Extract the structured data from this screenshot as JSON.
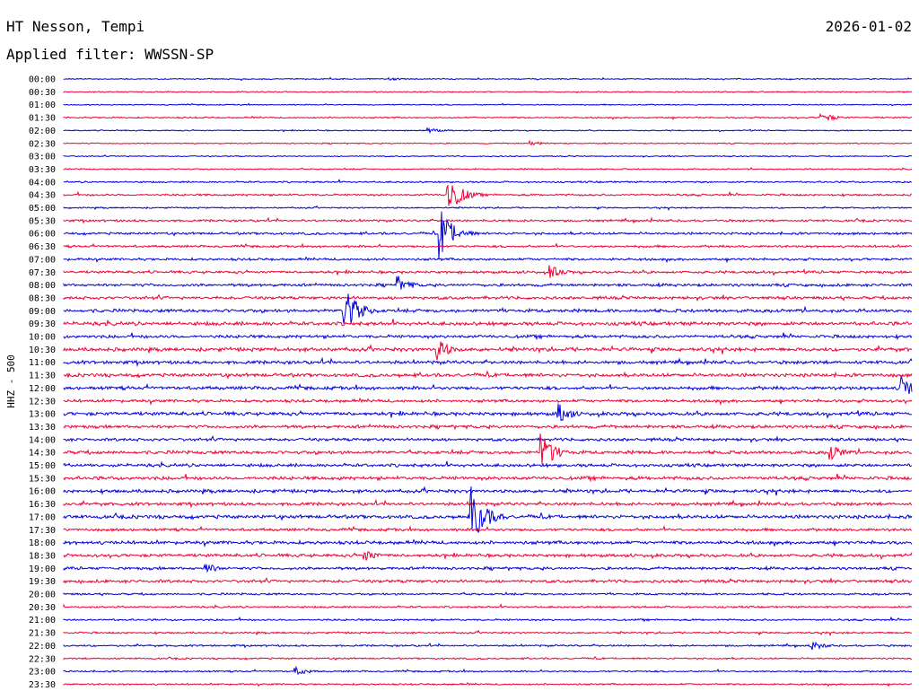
{
  "header": {
    "station": "HT Nesson, Tempi",
    "filter_label": "Applied filter: WWSSN-SP",
    "date": "2026-01-02"
  },
  "chart_data": {
    "type": "line",
    "ylabel": "HHZ - 500",
    "rows": [
      "00:00",
      "00:30",
      "01:00",
      "01:30",
      "02:00",
      "02:30",
      "03:00",
      "03:30",
      "04:00",
      "04:30",
      "05:00",
      "05:30",
      "06:00",
      "06:30",
      "07:00",
      "07:30",
      "08:00",
      "08:30",
      "09:00",
      "09:30",
      "10:00",
      "10:30",
      "11:00",
      "11:30",
      "12:00",
      "12:30",
      "13:00",
      "13:30",
      "14:00",
      "14:30",
      "15:00",
      "15:30",
      "16:00",
      "16:30",
      "17:00",
      "17:30",
      "18:00",
      "18:30",
      "19:00",
      "19:30",
      "20:00",
      "20:30",
      "21:00",
      "21:30",
      "22:00",
      "22:30",
      "23:00",
      "23:30"
    ],
    "series_colors": [
      "#0000dd",
      "#ee0033"
    ],
    "noise_level": [
      0.6,
      0.6,
      0.6,
      0.8,
      0.6,
      0.6,
      0.6,
      0.7,
      0.9,
      1.1,
      0.8,
      1.2,
      1.3,
      1.2,
      1.3,
      1.4,
      1.5,
      1.6,
      1.8,
      2.0,
      1.7,
      2.0,
      1.8,
      1.9,
      1.8,
      1.6,
      1.9,
      1.7,
      1.6,
      1.8,
      1.7,
      1.9,
      1.8,
      1.7,
      1.9,
      1.5,
      1.8,
      1.7,
      1.5,
      1.6,
      1.1,
      1.0,
      1.0,
      1.0,
      1.0,
      0.9,
      0.9,
      0.9
    ],
    "events": [
      {
        "row": 0,
        "minute": 11.5,
        "amp": 2
      },
      {
        "row": 3,
        "minute": 26.8,
        "amp": 6
      },
      {
        "row": 4,
        "minute": 12.9,
        "amp": 3
      },
      {
        "row": 5,
        "minute": 16.5,
        "amp": 3
      },
      {
        "row": 9,
        "minute": 13.6,
        "amp": 22
      },
      {
        "row": 12,
        "minute": 13.3,
        "amp": 30
      },
      {
        "row": 15,
        "minute": 17.2,
        "amp": 8
      },
      {
        "row": 16,
        "minute": 11.8,
        "amp": 10
      },
      {
        "row": 18,
        "minute": 9.9,
        "amp": 30
      },
      {
        "row": 21,
        "minute": 13.2,
        "amp": 12
      },
      {
        "row": 24,
        "minute": 29.6,
        "amp": 16
      },
      {
        "row": 26,
        "minute": 17.5,
        "amp": 12
      },
      {
        "row": 29,
        "minute": 16.9,
        "amp": 22
      },
      {
        "row": 29,
        "minute": 27.1,
        "amp": 10
      },
      {
        "row": 34,
        "minute": 14.4,
        "amp": 36
      },
      {
        "row": 37,
        "minute": 10.6,
        "amp": 8
      },
      {
        "row": 38,
        "minute": 5.0,
        "amp": 6
      },
      {
        "row": 44,
        "minute": 26.4,
        "amp": 6
      },
      {
        "row": 46,
        "minute": 8.2,
        "amp": 5
      }
    ]
  }
}
